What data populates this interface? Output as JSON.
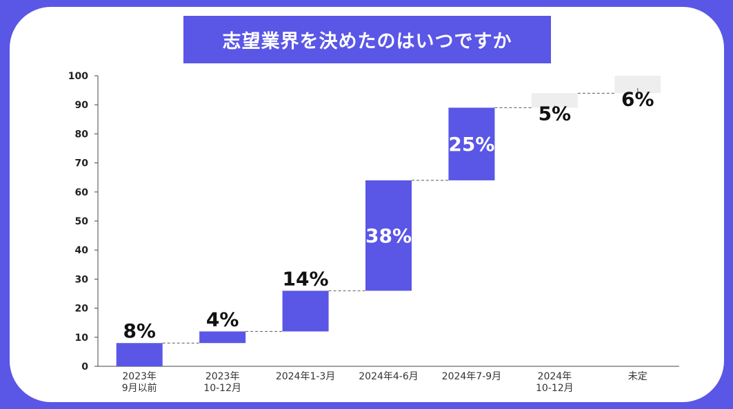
{
  "title": "志望業界を決めたのはいつですか",
  "colors": {
    "background": "#5a56e6",
    "bar_primary": "#5a56e6",
    "bar_secondary": "#eeeeee",
    "axis": "#444444",
    "card": "#ffffff"
  },
  "chart_data": {
    "type": "waterfall",
    "title": "志望業界を決めたのはいつですか",
    "ylim": [
      0,
      100
    ],
    "yticks": [
      "0",
      "10",
      "20",
      "30",
      "40",
      "50",
      "60",
      "70",
      "80",
      "90",
      "100"
    ],
    "categories": [
      [
        "2023年",
        "9月以前"
      ],
      [
        "2023年",
        "10-12月"
      ],
      [
        "2024年1-3月"
      ],
      [
        "2024年4-6月"
      ],
      [
        "2024年7-9月"
      ],
      [
        "2024年",
        "10-12月"
      ],
      [
        "未定"
      ]
    ],
    "values": [
      8,
      4,
      14,
      38,
      25,
      5,
      6
    ],
    "data_labels": [
      "8%",
      "4%",
      "14%",
      "38%",
      "25%",
      "5%",
      "6%"
    ],
    "bar_styles": [
      "primary",
      "primary",
      "primary",
      "primary",
      "primary",
      "secondary",
      "secondary"
    ],
    "label_positions": [
      "above",
      "above",
      "above",
      "inside",
      "inside",
      "inside",
      "inside"
    ],
    "grid": false,
    "connectors": true
  }
}
